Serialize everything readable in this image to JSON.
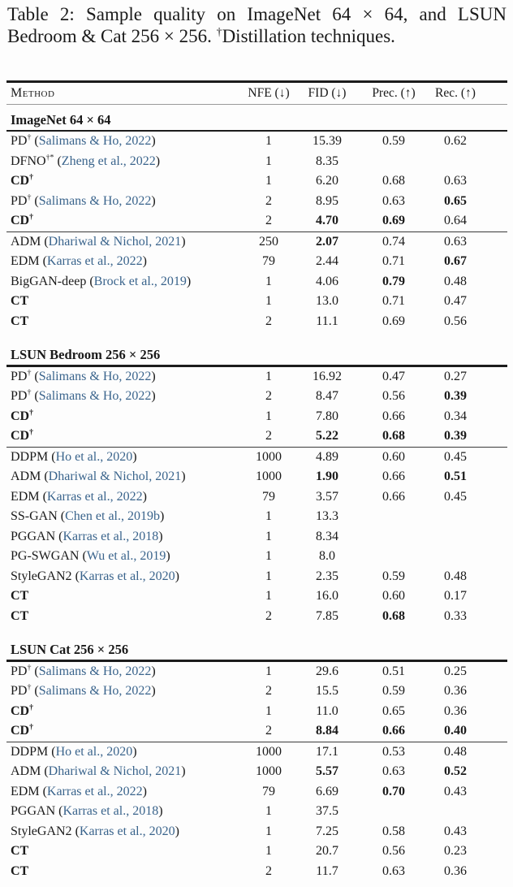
{
  "caption": {
    "part1": "Table 2: Sample quality on ImageNet 64 × 64, and LSUN Bedroom & Cat 256 × 256. ",
    "dagger": "†",
    "part2": "Distillation techniques."
  },
  "header": {
    "method": "Method",
    "nfe": "NFE (↓)",
    "fid": "FID (↓)",
    "prec": "Prec. (↑)",
    "rec": "Rec. (↑)"
  },
  "colors": {
    "citation_link": "#3a648c",
    "text": "#1a1a1a",
    "rule": "#1c1c1c"
  },
  "sections": [
    {
      "title": "ImageNet 64 × 64",
      "groups": [
        [
          {
            "name": "PD",
            "sup": "†",
            "bold": false,
            "cite": "Salimans & Ho, 2022",
            "nfe": "1",
            "fid": "15.39",
            "fb": false,
            "prec": "0.59",
            "pb": false,
            "rec": "0.62",
            "rb": false
          },
          {
            "name": "DFNO",
            "sup": "†*",
            "bold": false,
            "cite": "Zheng et al., 2022",
            "nfe": "1",
            "fid": "8.35",
            "fb": false,
            "prec": "",
            "pb": false,
            "rec": "",
            "rb": false
          },
          {
            "name": "CD",
            "sup": "†",
            "bold": true,
            "cite": "",
            "nfe": "1",
            "fid": "6.20",
            "fb": false,
            "prec": "0.68",
            "pb": false,
            "rec": "0.63",
            "rb": false
          },
          {
            "name": "PD",
            "sup": "†",
            "bold": false,
            "cite": "Salimans & Ho, 2022",
            "nfe": "2",
            "fid": "8.95",
            "fb": false,
            "prec": "0.63",
            "pb": false,
            "rec": "0.65",
            "rb": true
          },
          {
            "name": "CD",
            "sup": "†",
            "bold": true,
            "cite": "",
            "nfe": "2",
            "fid": "4.70",
            "fb": true,
            "prec": "0.69",
            "pb": true,
            "rec": "0.64",
            "rb": false
          }
        ],
        [
          {
            "name": "ADM",
            "sup": "",
            "bold": false,
            "cite": "Dhariwal & Nichol, 2021",
            "nfe": "250",
            "fid": "2.07",
            "fb": true,
            "prec": "0.74",
            "pb": false,
            "rec": "0.63",
            "rb": false
          },
          {
            "name": "EDM",
            "sup": "",
            "bold": false,
            "cite": "Karras et al., 2022",
            "nfe": "79",
            "fid": "2.44",
            "fb": false,
            "prec": "0.71",
            "pb": false,
            "rec": "0.67",
            "rb": true
          },
          {
            "name": "BigGAN-deep",
            "sup": "",
            "bold": false,
            "cite": "Brock et al., 2019",
            "nfe": "1",
            "fid": "4.06",
            "fb": false,
            "prec": "0.79",
            "pb": true,
            "rec": "0.48",
            "rb": false
          },
          {
            "name": "CT",
            "sup": "",
            "bold": true,
            "cite": "",
            "nfe": "1",
            "fid": "13.0",
            "fb": false,
            "prec": "0.71",
            "pb": false,
            "rec": "0.47",
            "rb": false
          },
          {
            "name": "CT",
            "sup": "",
            "bold": true,
            "cite": "",
            "nfe": "2",
            "fid": "11.1",
            "fb": false,
            "prec": "0.69",
            "pb": false,
            "rec": "0.56",
            "rb": false
          }
        ]
      ]
    },
    {
      "title": "LSUN Bedroom 256 × 256",
      "groups": [
        [
          {
            "name": "PD",
            "sup": "†",
            "bold": false,
            "cite": "Salimans & Ho, 2022",
            "nfe": "1",
            "fid": "16.92",
            "fb": false,
            "prec": "0.47",
            "pb": false,
            "rec": "0.27",
            "rb": false
          },
          {
            "name": "PD",
            "sup": "†",
            "bold": false,
            "cite": "Salimans & Ho, 2022",
            "nfe": "2",
            "fid": "8.47",
            "fb": false,
            "prec": "0.56",
            "pb": false,
            "rec": "0.39",
            "rb": true
          },
          {
            "name": "CD",
            "sup": "†",
            "bold": true,
            "cite": "",
            "nfe": "1",
            "fid": "7.80",
            "fb": false,
            "prec": "0.66",
            "pb": false,
            "rec": "0.34",
            "rb": false
          },
          {
            "name": "CD",
            "sup": "†",
            "bold": true,
            "cite": "",
            "nfe": "2",
            "fid": "5.22",
            "fb": true,
            "prec": "0.68",
            "pb": true,
            "rec": "0.39",
            "rb": true
          }
        ],
        [
          {
            "name": "DDPM",
            "sup": "",
            "bold": false,
            "cite": "Ho et al., 2020",
            "nfe": "1000",
            "fid": "4.89",
            "fb": false,
            "prec": "0.60",
            "pb": false,
            "rec": "0.45",
            "rb": false
          },
          {
            "name": "ADM",
            "sup": "",
            "bold": false,
            "cite": "Dhariwal & Nichol, 2021",
            "nfe": "1000",
            "fid": "1.90",
            "fb": true,
            "prec": "0.66",
            "pb": false,
            "rec": "0.51",
            "rb": true
          },
          {
            "name": "EDM",
            "sup": "",
            "bold": false,
            "cite": "Karras et al., 2022",
            "nfe": "79",
            "fid": "3.57",
            "fb": false,
            "prec": "0.66",
            "pb": false,
            "rec": "0.45",
            "rb": false
          },
          {
            "name": "SS-GAN",
            "sup": "",
            "bold": false,
            "cite": "Chen et al., 2019b",
            "nfe": "1",
            "fid": "13.3",
            "fb": false,
            "prec": "",
            "pb": false,
            "rec": "",
            "rb": false
          },
          {
            "name": "PGGAN",
            "sup": "",
            "bold": false,
            "cite": "Karras et al., 2018",
            "nfe": "1",
            "fid": "8.34",
            "fb": false,
            "prec": "",
            "pb": false,
            "rec": "",
            "rb": false
          },
          {
            "name": "PG-SWGAN",
            "sup": "",
            "bold": false,
            "cite": "Wu et al., 2019",
            "nfe": "1",
            "fid": "8.0",
            "fb": false,
            "prec": "",
            "pb": false,
            "rec": "",
            "rb": false
          },
          {
            "name": "StyleGAN2",
            "sup": "",
            "bold": false,
            "cite": "Karras et al., 2020",
            "nfe": "1",
            "fid": "2.35",
            "fb": false,
            "prec": "0.59",
            "pb": false,
            "rec": "0.48",
            "rb": false
          },
          {
            "name": "CT",
            "sup": "",
            "bold": true,
            "cite": "",
            "nfe": "1",
            "fid": "16.0",
            "fb": false,
            "prec": "0.60",
            "pb": false,
            "rec": "0.17",
            "rb": false
          },
          {
            "name": "CT",
            "sup": "",
            "bold": true,
            "cite": "",
            "nfe": "2",
            "fid": "7.85",
            "fb": false,
            "prec": "0.68",
            "pb": true,
            "rec": "0.33",
            "rb": false
          }
        ]
      ]
    },
    {
      "title": "LSUN Cat 256 × 256",
      "groups": [
        [
          {
            "name": "PD",
            "sup": "†",
            "bold": false,
            "cite": "Salimans & Ho, 2022",
            "nfe": "1",
            "fid": "29.6",
            "fb": false,
            "prec": "0.51",
            "pb": false,
            "rec": "0.25",
            "rb": false
          },
          {
            "name": "PD",
            "sup": "†",
            "bold": false,
            "cite": "Salimans & Ho, 2022",
            "nfe": "2",
            "fid": "15.5",
            "fb": false,
            "prec": "0.59",
            "pb": false,
            "rec": "0.36",
            "rb": false
          },
          {
            "name": "CD",
            "sup": "†",
            "bold": true,
            "cite": "",
            "nfe": "1",
            "fid": "11.0",
            "fb": false,
            "prec": "0.65",
            "pb": false,
            "rec": "0.36",
            "rb": false
          },
          {
            "name": "CD",
            "sup": "†",
            "bold": true,
            "cite": "",
            "nfe": "2",
            "fid": "8.84",
            "fb": true,
            "prec": "0.66",
            "pb": true,
            "rec": "0.40",
            "rb": true
          }
        ],
        [
          {
            "name": "DDPM",
            "sup": "",
            "bold": false,
            "cite": "Ho et al., 2020",
            "nfe": "1000",
            "fid": "17.1",
            "fb": false,
            "prec": "0.53",
            "pb": false,
            "rec": "0.48",
            "rb": false
          },
          {
            "name": "ADM",
            "sup": "",
            "bold": false,
            "cite": "Dhariwal & Nichol, 2021",
            "nfe": "1000",
            "fid": "5.57",
            "fb": true,
            "prec": "0.63",
            "pb": false,
            "rec": "0.52",
            "rb": true
          },
          {
            "name": "EDM",
            "sup": "",
            "bold": false,
            "cite": "Karras et al., 2022",
            "nfe": "79",
            "fid": "6.69",
            "fb": false,
            "prec": "0.70",
            "pb": true,
            "rec": "0.43",
            "rb": false
          },
          {
            "name": "PGGAN",
            "sup": "",
            "bold": false,
            "cite": "Karras et al., 2018",
            "nfe": "1",
            "fid": "37.5",
            "fb": false,
            "prec": "",
            "pb": false,
            "rec": "",
            "rb": false
          },
          {
            "name": "StyleGAN2",
            "sup": "",
            "bold": false,
            "cite": "Karras et al., 2020",
            "nfe": "1",
            "fid": "7.25",
            "fb": false,
            "prec": "0.58",
            "pb": false,
            "rec": "0.43",
            "rb": false
          },
          {
            "name": "CT",
            "sup": "",
            "bold": true,
            "cite": "",
            "nfe": "1",
            "fid": "20.7",
            "fb": false,
            "prec": "0.56",
            "pb": false,
            "rec": "0.23",
            "rb": false
          },
          {
            "name": "CT",
            "sup": "",
            "bold": true,
            "cite": "",
            "nfe": "2",
            "fid": "11.7",
            "fb": false,
            "prec": "0.63",
            "pb": false,
            "rec": "0.36",
            "rb": false
          }
        ]
      ]
    }
  ]
}
